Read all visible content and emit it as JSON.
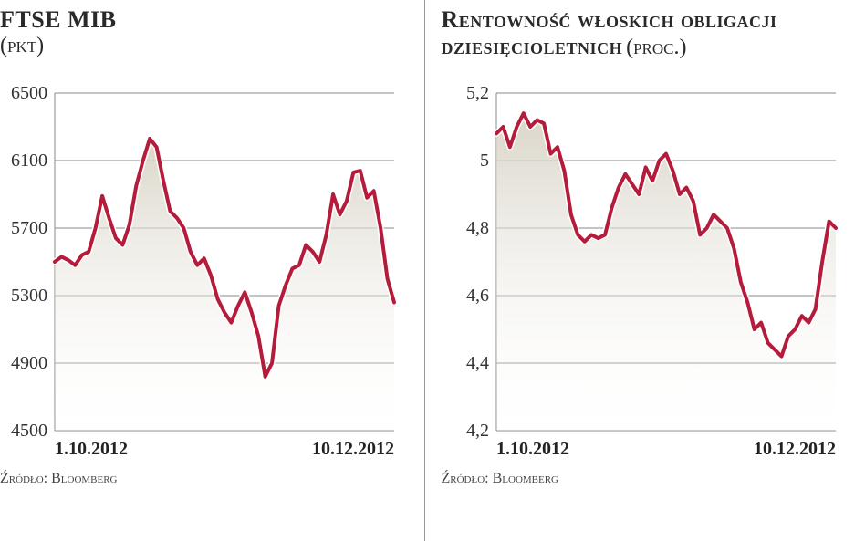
{
  "charts": [
    {
      "title_main": "FTSE MIB",
      "title_sub": "(pkt)",
      "source": "Źródło: Bloomberg",
      "type": "line-area",
      "line_color": "#b51c3b",
      "line_width": 4,
      "line_outline": "#ffffff",
      "line_outline_width": 7,
      "fill_top": "#d5d0c2",
      "fill_bottom": "#ffffff",
      "grid_color": "#8a8a8a",
      "grid_width": 1,
      "background": "#ffffff",
      "ylim": [
        4500,
        6500
      ],
      "yticks": [
        4500,
        4900,
        5300,
        5700,
        6100,
        6500
      ],
      "xlim": [
        0,
        50
      ],
      "xtick_positions": [
        0,
        50
      ],
      "xticks": [
        "1.10.2012",
        "10.12.2012"
      ],
      "tick_fontsize": 20,
      "values": [
        5500,
        5530,
        5510,
        5480,
        5540,
        5560,
        5700,
        5890,
        5760,
        5640,
        5600,
        5720,
        5950,
        6100,
        6230,
        6180,
        5980,
        5800,
        5760,
        5700,
        5560,
        5480,
        5520,
        5420,
        5280,
        5200,
        5140,
        5240,
        5320,
        5200,
        5060,
        4820,
        4900,
        5240,
        5360,
        5460,
        5480,
        5600,
        5560,
        5500,
        5660,
        5900,
        5780,
        5860,
        6030,
        6040,
        5880,
        5920,
        5700,
        5400,
        5260
      ]
    },
    {
      "title_main": "Rentowność włoskich obligacji dziesięcioletnich",
      "title_sub": "(proc.)",
      "source": "Źródło: Bloomberg",
      "type": "line-area",
      "line_color": "#b51c3b",
      "line_width": 4,
      "line_outline": "#ffffff",
      "line_outline_width": 7,
      "fill_top": "#d5d0c2",
      "fill_bottom": "#ffffff",
      "grid_color": "#8a8a8a",
      "grid_width": 1,
      "background": "#ffffff",
      "ylim": [
        4.2,
        5.2
      ],
      "yticks": [
        4.2,
        4.4,
        4.6,
        4.8,
        5.0,
        5.2
      ],
      "xlim": [
        0,
        50
      ],
      "xtick_positions": [
        0,
        50
      ],
      "xticks": [
        "1.10.2012",
        "10.12.2012"
      ],
      "tick_fontsize": 20,
      "y_decimal_sep": ",",
      "values": [
        5.08,
        5.1,
        5.04,
        5.1,
        5.14,
        5.1,
        5.12,
        5.11,
        5.02,
        5.04,
        4.97,
        4.84,
        4.78,
        4.76,
        4.78,
        4.77,
        4.78,
        4.86,
        4.92,
        4.96,
        4.93,
        4.9,
        4.98,
        4.94,
        5.0,
        5.02,
        4.97,
        4.9,
        4.92,
        4.88,
        4.78,
        4.8,
        4.84,
        4.82,
        4.8,
        4.74,
        4.64,
        4.58,
        4.5,
        4.52,
        4.46,
        4.44,
        4.42,
        4.48,
        4.5,
        4.54,
        4.52,
        4.56,
        4.7,
        4.82,
        4.8
      ]
    }
  ]
}
